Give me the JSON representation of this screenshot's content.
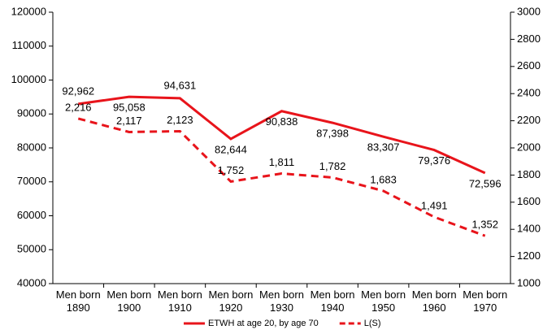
{
  "chart_data": {
    "type": "line",
    "categories": [
      "Men born 1890",
      "Men born 1900",
      "Men born 1910",
      "Men born 1920",
      "Men born 1930",
      "Men born 1940",
      "Men born 1950",
      "Men born 1960",
      "Men born 1970"
    ],
    "series": [
      {
        "name": "ETWH at age 20, by age 70",
        "color": "#e8141b",
        "dash": false,
        "values": [
          92962,
          95058,
          94631,
          82644,
          90838,
          87398,
          83307,
          79376,
          72596
        ],
        "value_labels": [
          "92,962",
          "95,058",
          "94,631",
          "82,644",
          "90,838",
          "87,398",
          "83,307",
          "79,376",
          "72,596"
        ]
      },
      {
        "name": "L(S)",
        "color": "#e8141b",
        "dash": true,
        "axis": "y2",
        "values": [
          2216,
          2117,
          2123,
          1752,
          1811,
          1782,
          1683,
          1491,
          1352
        ],
        "value_labels": [
          "2,216",
          "2,117",
          "2,123",
          "1,752",
          "1,811",
          "1,782",
          "1,683",
          "1,491",
          "1,352"
        ]
      }
    ],
    "ylim": [
      40000,
      120000
    ],
    "yticks": [
      40000,
      50000,
      60000,
      70000,
      80000,
      90000,
      100000,
      110000,
      120000
    ],
    "y2lim": [
      1000,
      3000
    ],
    "y2ticks": [
      1000,
      1200,
      1400,
      1600,
      1800,
      2000,
      2200,
      2400,
      2600,
      2800,
      3000
    ],
    "legend": "bottom"
  }
}
